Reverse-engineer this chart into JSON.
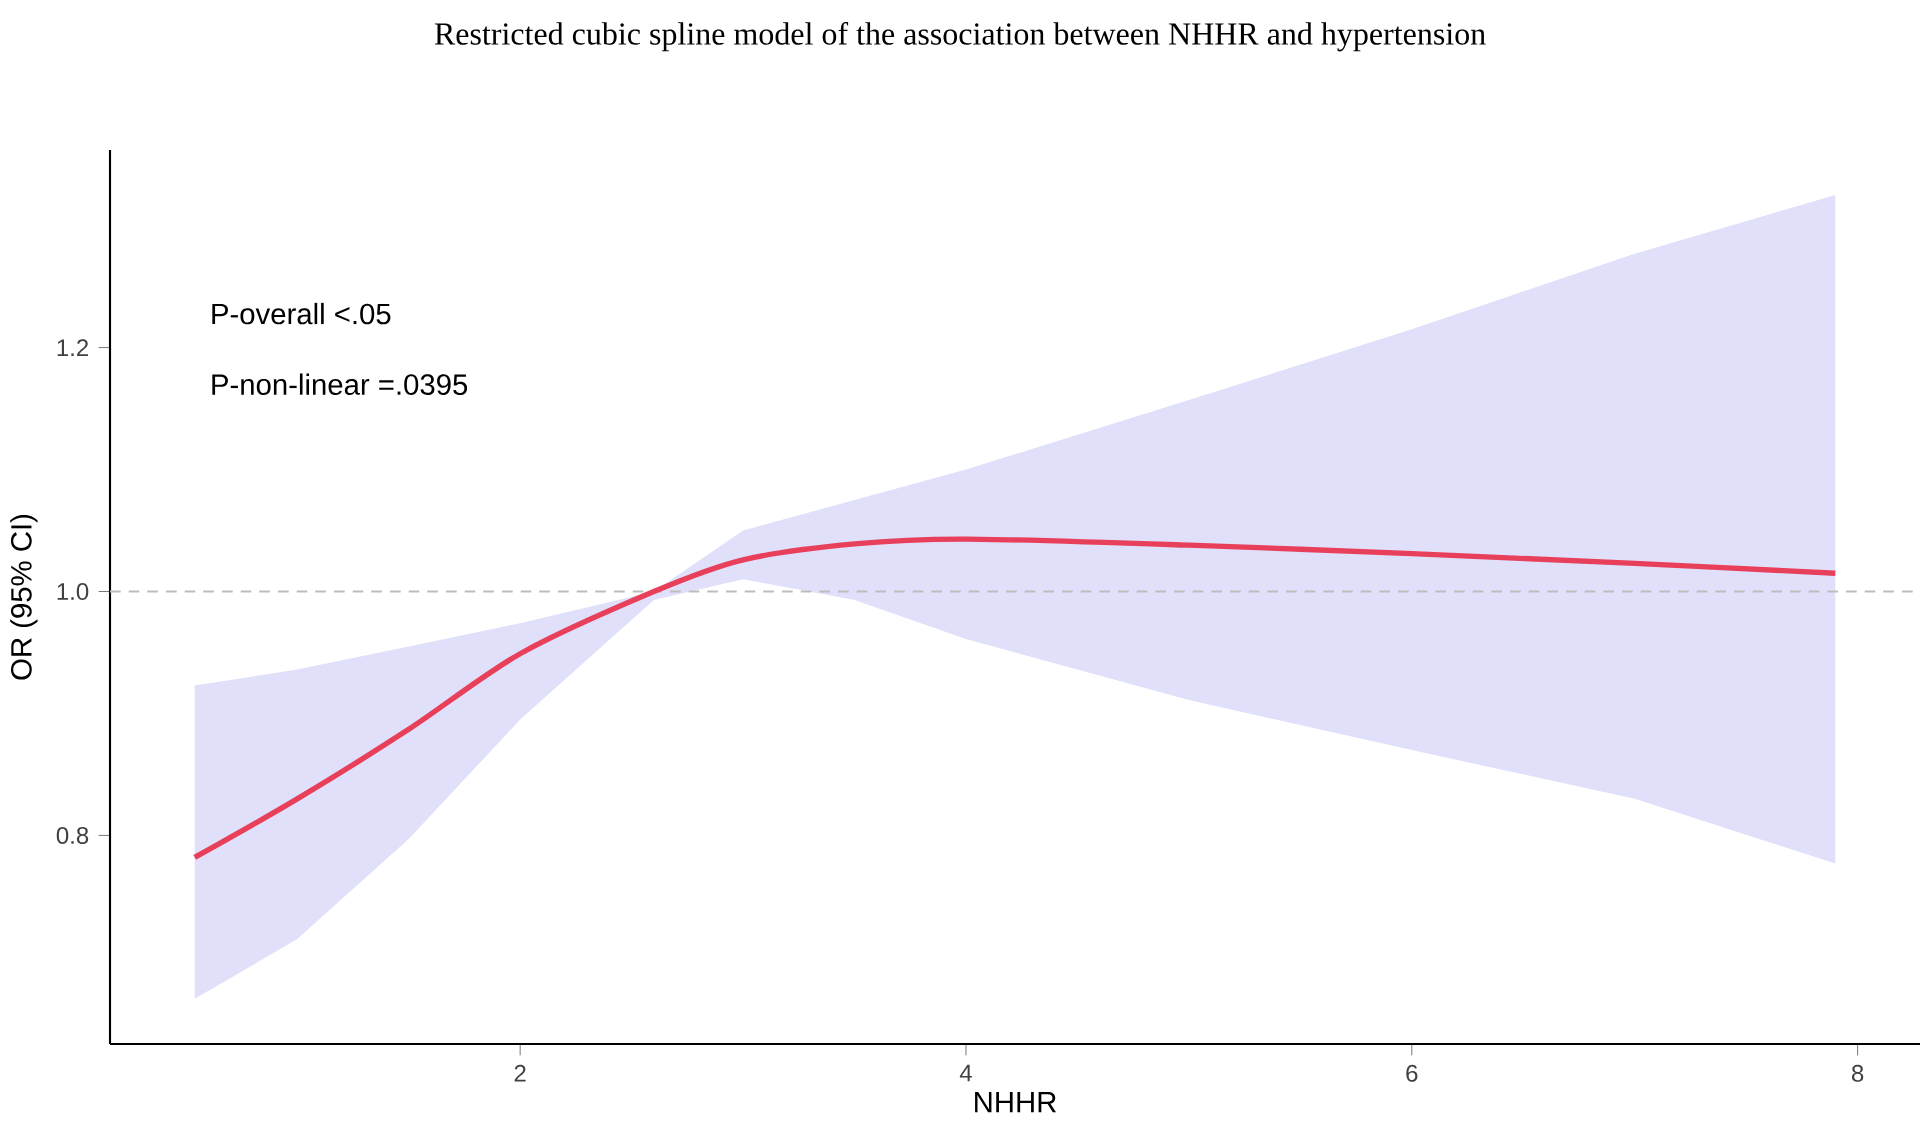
{
  "chart_data": {
    "type": "line",
    "title": "Restricted cubic spline model of the association between NHHR and hypertension",
    "xlabel": "NHHR",
    "ylabel": "OR (95% CI)",
    "annotations": [
      "P-overall <.05",
      "P-non-linear =.0395"
    ],
    "series": [
      {
        "color": "#e8405a",
        "x": [
          0.54,
          1,
          1.5,
          2,
          2.6,
          3,
          3.5,
          4,
          5,
          6,
          7,
          7.9
        ],
        "values": [
          0.782,
          0.83,
          0.887,
          0.949,
          1.0,
          1.026,
          1.039,
          1.043,
          1.038,
          1.031,
          1.023,
          1.015
        ],
        "lower": [
          0.666,
          0.715,
          0.797,
          0.895,
          0.993,
          1.01,
          0.993,
          0.961,
          0.911,
          0.87,
          0.83,
          0.777
        ],
        "upper": [
          0.923,
          0.936,
          0.955,
          0.974,
          1.0,
          1.05,
          1.075,
          1.1,
          1.157,
          1.215,
          1.277,
          1.325
        ]
      }
    ],
    "xlim": [
      0.16,
      8.28
    ],
    "ylim": [
      0.629,
      1.362
    ],
    "xticks": [
      2,
      4,
      6,
      8
    ],
    "yticks": [
      0.8,
      {
        "value": 1.0,
        "label": "1.0"
      },
      1.2
    ],
    "ref_lines": [
      {
        "axis": "y",
        "value": 1.0,
        "color": "#bdbdbd",
        "line_style": "dashed"
      }
    ],
    "grid": false
  }
}
